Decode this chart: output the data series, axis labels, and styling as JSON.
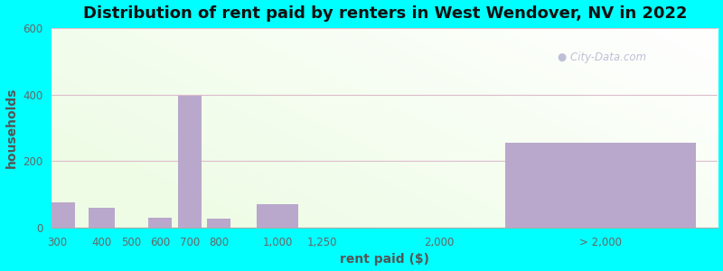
{
  "title": "Distribution of rent paid by renters in West Wendover, NV in 2022",
  "xlabel": "rent paid ($)",
  "ylabel": "households",
  "categories": [
    "300",
    "400",
    "500",
    "600",
    "700",
    "800",
    "1,000",
    "1,250",
    "2,000",
    "> 2,000"
  ],
  "values": [
    75,
    60,
    0,
    30,
    395,
    28,
    70,
    0,
    0,
    255
  ],
  "bar_color": "#b9a8cc",
  "ylim": [
    0,
    600
  ],
  "yticks": [
    0,
    200,
    400,
    600
  ],
  "title_fontsize": 13,
  "axis_label_fontsize": 10,
  "tick_fontsize": 8.5,
  "background_outer": "#00ffff",
  "watermark_text": "City-Data.com",
  "x_positions": [
    0,
    1.5,
    2.5,
    3.5,
    4.5,
    5.5,
    7.5,
    9.0,
    13.0,
    18.5
  ],
  "bar_widths": [
    1.2,
    0.9,
    0.8,
    0.8,
    0.8,
    0.8,
    1.4,
    1.2,
    0.01,
    6.5
  ],
  "xlim": [
    -0.2,
    22.5
  ]
}
